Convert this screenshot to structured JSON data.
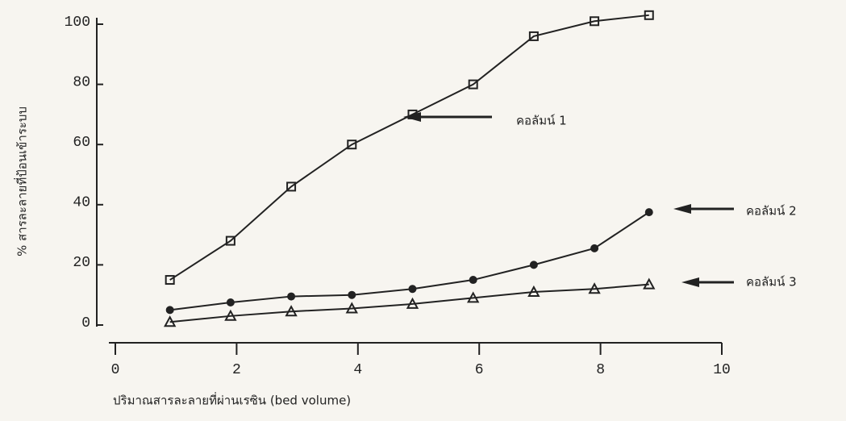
{
  "chart_data": {
    "type": "line",
    "x_label": "ปริมาณสารละลายที่ผ่านเรซิน (bed volume)",
    "y_label": "% สารละลายที่ป้อนเข้าระบบ",
    "x": [
      0.9,
      1.9,
      2.9,
      3.9,
      4.9,
      5.9,
      6.9,
      7.9,
      8.8
    ],
    "series": [
      {
        "name": "คอลัมน์ 1",
        "marker": "square",
        "color": "#222222",
        "values": [
          15,
          28,
          46,
          60,
          70,
          80,
          96,
          101,
          103
        ]
      },
      {
        "name": "คอลัมน์ 2",
        "marker": "circle",
        "color": "#222222",
        "values": [
          5,
          7.5,
          9.5,
          10,
          12,
          15,
          20,
          25.5,
          37.5
        ]
      },
      {
        "name": "คอลัมน์ 3",
        "marker": "triangle",
        "color": "#222222",
        "values": [
          1,
          3,
          4.5,
          5.5,
          7,
          9,
          11,
          12,
          13.5
        ]
      }
    ],
    "xlim": [
      0,
      10
    ],
    "xticks": [
      0,
      2,
      4,
      6,
      8,
      10
    ],
    "ylim": [
      0,
      100
    ],
    "yticks": [
      0,
      20,
      40,
      60,
      80,
      100
    ]
  }
}
